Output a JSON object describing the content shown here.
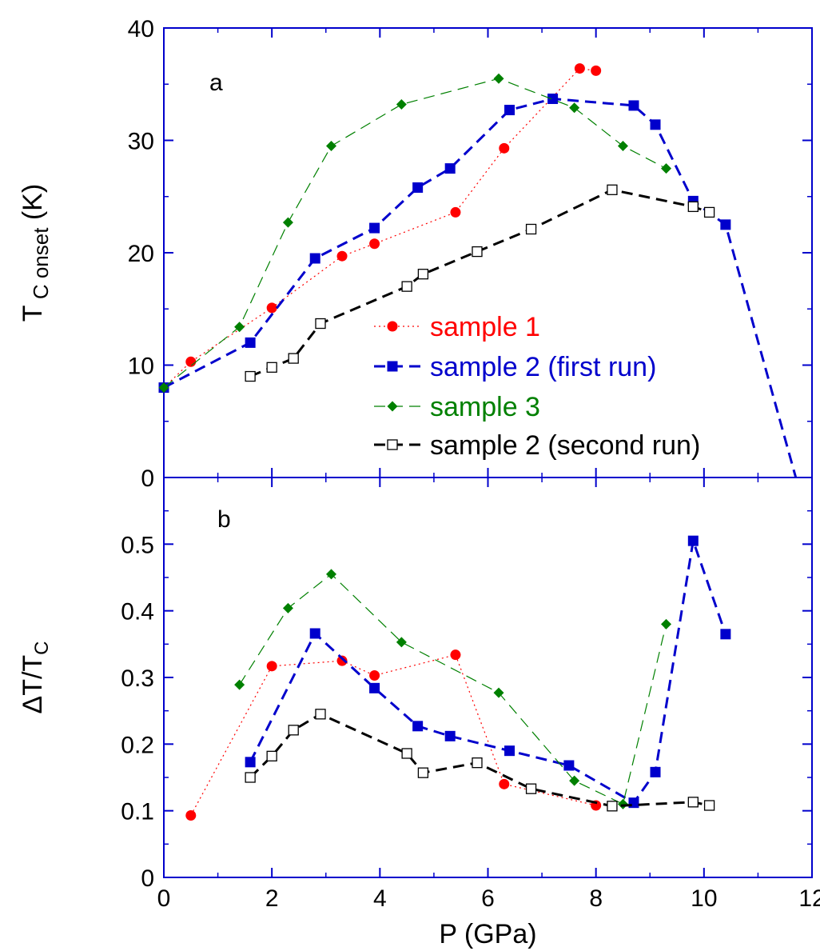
{
  "chart_data": [
    {
      "id": "a",
      "type": "line",
      "panel_label": "a",
      "ylabel_main": "T",
      "ylabel_sub": "C onset",
      "ylabel_unit": "(K)",
      "xlim": [
        0,
        12
      ],
      "ylim": [
        0,
        40
      ],
      "yticks": [
        "0",
        "10",
        "20",
        "30",
        "40"
      ],
      "ytick_values": [
        0,
        10,
        20,
        30,
        40
      ],
      "legend_position": "lower-right",
      "series": [
        {
          "name": "sample 1",
          "color": "#ff0000",
          "marker": "circle",
          "line": "dotted",
          "x": [
            0,
            0.5,
            2.0,
            3.3,
            3.9,
            5.4,
            6.3,
            7.7,
            8.0
          ],
          "y": [
            8.0,
            10.3,
            15.1,
            19.7,
            20.8,
            23.6,
            29.3,
            36.4,
            36.2
          ]
        },
        {
          "name": "sample 2 (first run)",
          "color": "#0000cc",
          "marker": "square",
          "line": "dashed",
          "x": [
            0,
            1.6,
            2.8,
            3.9,
            4.7,
            5.3,
            6.4,
            7.2,
            8.7,
            9.1,
            9.8,
            10.4,
            11.7
          ],
          "y": [
            8.0,
            12.0,
            19.5,
            22.2,
            25.8,
            27.5,
            32.7,
            33.7,
            33.1,
            31.4,
            24.6,
            22.5,
            0
          ],
          "last_point_marker": false
        },
        {
          "name": "sample 3",
          "color": "#008000",
          "marker": "diamond",
          "line": "dashed",
          "x": [
            0,
            1.4,
            2.3,
            3.1,
            4.4,
            6.2,
            7.6,
            8.5,
            9.3
          ],
          "y": [
            8.0,
            13.4,
            22.7,
            29.5,
            33.2,
            35.5,
            32.9,
            29.5,
            27.5
          ]
        },
        {
          "name": "sample 2 (second run)",
          "color": "#000000",
          "marker": "open-square",
          "line": "dashed",
          "x": [
            1.6,
            2.0,
            2.4,
            2.9,
            4.5,
            4.8,
            5.8,
            6.8,
            8.3,
            9.8,
            10.1
          ],
          "y": [
            9.0,
            9.8,
            10.6,
            13.7,
            17.0,
            18.1,
            20.1,
            22.1,
            25.6,
            24.1,
            23.6
          ]
        }
      ]
    },
    {
      "id": "b",
      "type": "line",
      "panel_label": "b",
      "ylabel": "ΔT/T",
      "ylabel_sub": "C",
      "xlabel": "P (GPa)",
      "xlim": [
        0,
        12
      ],
      "xticks": [
        "0",
        "2",
        "4",
        "6",
        "8",
        "10",
        "12"
      ],
      "xtick_values": [
        0,
        2,
        4,
        6,
        8,
        10,
        12
      ],
      "ylim": [
        0,
        0.6
      ],
      "yticks": [
        "0",
        "0.1",
        "0.2",
        "0.3",
        "0.4",
        "0.5"
      ],
      "ytick_values": [
        0,
        0.1,
        0.2,
        0.3,
        0.4,
        0.5
      ],
      "series": [
        {
          "name": "sample 1",
          "color": "#ff0000",
          "marker": "circle",
          "line": "dotted",
          "x": [
            0.5,
            2.0,
            3.3,
            3.9,
            5.4,
            6.3,
            8.0
          ],
          "y": [
            0.093,
            0.317,
            0.325,
            0.303,
            0.334,
            0.14,
            0.108
          ]
        },
        {
          "name": "sample 2 (first run)",
          "color": "#0000cc",
          "marker": "square",
          "line": "dashed",
          "x": [
            1.6,
            2.8,
            3.9,
            4.7,
            5.3,
            6.4,
            7.5,
            8.7,
            9.1,
            9.8,
            10.4
          ],
          "y": [
            0.173,
            0.366,
            0.284,
            0.227,
            0.212,
            0.19,
            0.168,
            0.112,
            0.158,
            0.505,
            0.365
          ]
        },
        {
          "name": "sample 3",
          "color": "#008000",
          "marker": "diamond",
          "line": "dashed",
          "x": [
            1.4,
            2.3,
            3.1,
            4.4,
            6.2,
            7.6,
            8.5,
            9.3
          ],
          "y": [
            0.289,
            0.404,
            0.455,
            0.353,
            0.277,
            0.145,
            0.11,
            0.38
          ]
        },
        {
          "name": "sample 2 (second run)",
          "color": "#000000",
          "marker": "open-square",
          "line": "dashed",
          "x": [
            1.6,
            2.0,
            2.4,
            2.9,
            4.5,
            4.8,
            5.8,
            6.8,
            8.3,
            9.8,
            10.1
          ],
          "y": [
            0.15,
            0.182,
            0.221,
            0.245,
            0.186,
            0.157,
            0.172,
            0.133,
            0.107,
            0.113,
            0.108
          ]
        }
      ]
    }
  ],
  "legend": {
    "items": [
      {
        "label": "sample 1",
        "color": "#ff0000",
        "marker": "circle",
        "line": "dotted"
      },
      {
        "label": "sample 2 (first run)",
        "color": "#0000cc",
        "marker": "square",
        "line": "dashed"
      },
      {
        "label": "sample 3",
        "color": "#008000",
        "marker": "diamond",
        "line": "dashed"
      },
      {
        "label": "sample 2 (second run)",
        "color": "#000000",
        "marker": "open-square",
        "line": "dashed"
      }
    ]
  },
  "frame_color": "#0000cc"
}
